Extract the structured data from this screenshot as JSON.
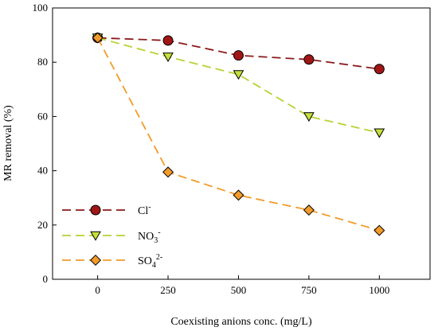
{
  "chart_data": {
    "type": "line",
    "xlabel": "Coexisting anions conc. (mg/L)",
    "ylabel": "MR removal (%)",
    "xlim": [
      -160,
      1180
    ],
    "ylim": [
      0,
      100
    ],
    "x_ticks": [
      0,
      250,
      500,
      750,
      1000
    ],
    "y_ticks": [
      0,
      20,
      40,
      60,
      80,
      100
    ],
    "grid": false,
    "legend_position": "lower-left",
    "series": [
      {
        "name_base": "Cl",
        "name_sub": "",
        "name_sup": "-",
        "marker": "circle",
        "line_color": "#8b1a1a",
        "fill_color": "#a01616",
        "x": [
          0,
          250,
          500,
          750,
          1000
        ],
        "y": [
          89.0,
          88.0,
          82.5,
          81.0,
          77.5
        ]
      },
      {
        "name_base": "NO",
        "name_sub": "3",
        "name_sup": "-",
        "marker": "triangle-down",
        "line_color": "#b5d334",
        "fill_color": "#c5e03a",
        "x": [
          0,
          250,
          500,
          750,
          1000
        ],
        "y": [
          89.0,
          82.0,
          75.5,
          60.0,
          54.0
        ]
      },
      {
        "name_base": "SO",
        "name_sub": "4",
        "name_sup": "2-",
        "marker": "diamond",
        "line_color": "#f39b2a",
        "fill_color": "#f39b2a",
        "x": [
          0,
          250,
          500,
          750,
          1000
        ],
        "y": [
          89.0,
          39.5,
          31.0,
          25.5,
          18.0
        ]
      }
    ]
  }
}
